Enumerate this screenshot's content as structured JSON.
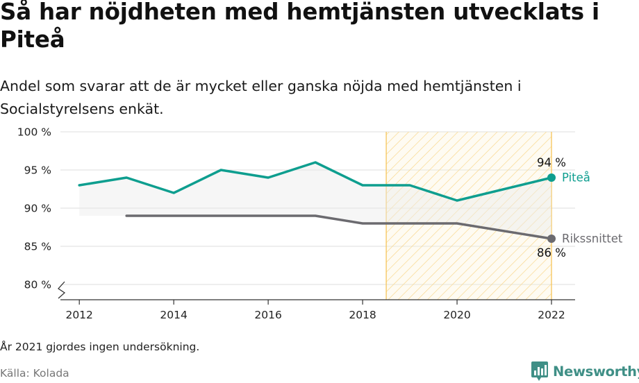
{
  "title": "Så har nöjdheten med hemtjänsten utvecklats i Piteå",
  "subtitle": "Andel som svarar att de är mycket eller ganska nöjda med hemtjänsten i Socialstyrelsens enkät.",
  "note": "År 2021 gjordes ingen undersökning.",
  "source": "Källa: Kolada",
  "brand": "Newsworthy",
  "chart_data": {
    "type": "line",
    "ylim": [
      78,
      100
    ],
    "xlim": [
      2011.6,
      2022.5
    ],
    "y_ticks": [
      {
        "value": 100,
        "label": "100 %"
      },
      {
        "value": 95,
        "label": "95 %"
      },
      {
        "value": 90,
        "label": "90 %"
      },
      {
        "value": 85,
        "label": "85 %"
      },
      {
        "value": 80,
        "label": "80 %"
      }
    ],
    "x_ticks": [
      {
        "value": 2012,
        "label": "2012"
      },
      {
        "value": 2014,
        "label": "2014"
      },
      {
        "value": 2016,
        "label": "2016"
      },
      {
        "value": 2018,
        "label": "2018"
      },
      {
        "value": 2020,
        "label": "2020"
      },
      {
        "value": 2022,
        "label": "2022"
      }
    ],
    "highlight_range": [
      2018.5,
      2022
    ],
    "series": [
      {
        "name": "Piteå",
        "color": "#0e9e8f",
        "x": [
          2012,
          2013,
          2014,
          2015,
          2016,
          2017,
          2018,
          2019,
          2020,
          2022
        ],
        "values": [
          93,
          94,
          92,
          95,
          94,
          96,
          93,
          93,
          91,
          94
        ],
        "end_label": "94 %"
      },
      {
        "name": "Rikssnittet",
        "color": "#6b6a6f",
        "x": [
          2013,
          2014,
          2015,
          2016,
          2017,
          2018,
          2019,
          2020,
          2022
        ],
        "values": [
          89,
          89,
          89,
          89,
          89,
          88,
          88,
          88,
          86
        ],
        "end_label": "86 %"
      }
    ],
    "grid": true,
    "axis_break": true
  }
}
